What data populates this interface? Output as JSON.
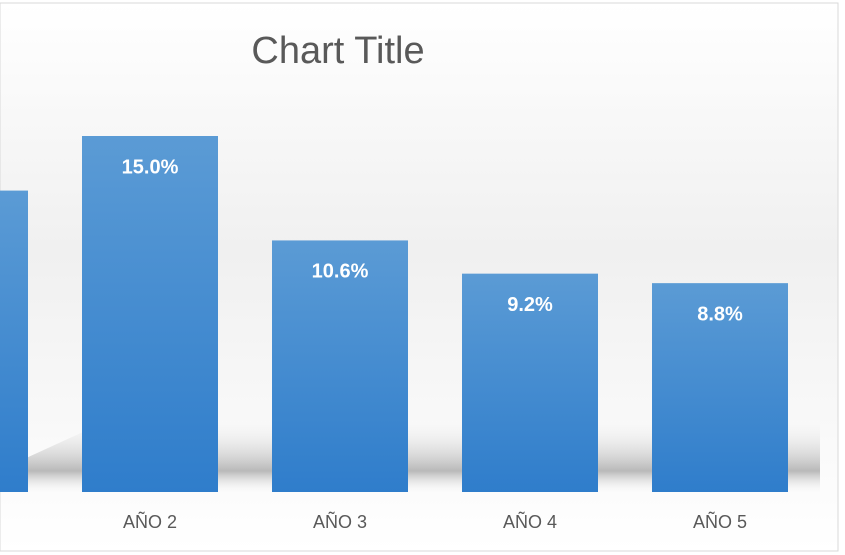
{
  "chart_data": {
    "type": "bar",
    "title": "Chart Title",
    "categories": [
      null,
      "AÑO 2",
      "AÑO 3",
      "AÑO 4",
      "AÑO 5"
    ],
    "values": [
      12.7,
      15.0,
      10.6,
      9.2,
      8.8
    ],
    "value_labels": [
      null,
      "15.0%",
      "10.6%",
      "9.2%",
      "8.8%"
    ],
    "color": "#4a8fd6"
  }
}
